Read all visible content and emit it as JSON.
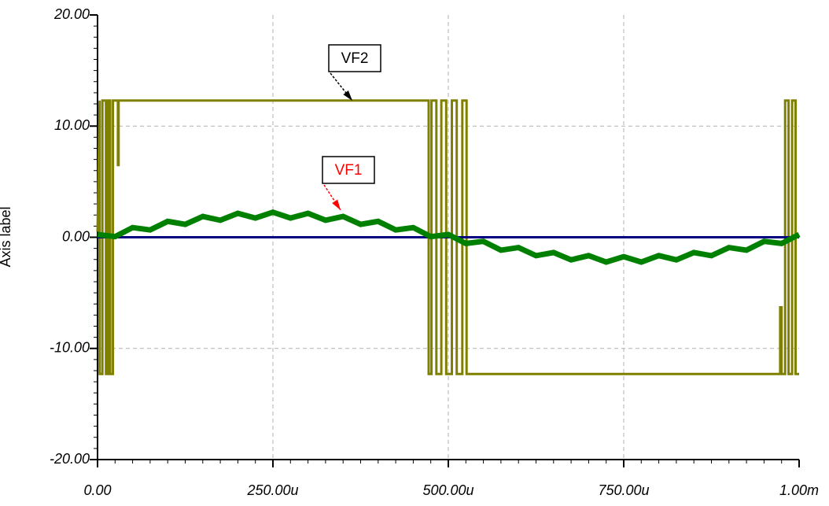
{
  "chart_data": {
    "type": "line",
    "y_label": "Axis label",
    "xlim": [
      0,
      0.001
    ],
    "ylim": [
      -20,
      20
    ],
    "xticks": [
      {
        "value": 0,
        "label": "0.00"
      },
      {
        "value": 0.00025,
        "label": "250.00u"
      },
      {
        "value": 0.0005,
        "label": "500.00u"
      },
      {
        "value": 0.00075,
        "label": "750.00u"
      },
      {
        "value": 0.001,
        "label": "1.00m"
      }
    ],
    "yticks": [
      {
        "value": -20,
        "label": "-20.00"
      },
      {
        "value": -10,
        "label": "-10.00"
      },
      {
        "value": 0,
        "label": "0.00"
      },
      {
        "value": 10,
        "label": "10.00"
      },
      {
        "value": 20,
        "label": "20.00"
      }
    ],
    "grid": true,
    "series": [
      {
        "name": "VF2",
        "color": "#808000",
        "x": [
          0,
          3e-06,
          3e-06,
          7e-06,
          7e-06,
          1.2e-05,
          1.2e-05,
          1.5e-05,
          1.5e-05,
          1.8e-05,
          1.8e-05,
          2.2e-05,
          2.2e-05,
          2.9e-05,
          2.9e-05,
          3e-05,
          3e-05,
          0.000472,
          0.000472,
          0.000476,
          0.000476,
          0.000483,
          0.000483,
          0.00049,
          0.00049,
          0.000497,
          0.000497,
          0.000505,
          0.000505,
          0.000512,
          0.000512,
          0.00052,
          0.00052,
          0.000526,
          0.000526,
          0.000973,
          0.000973,
          0.000975,
          0.000975,
          0.00098,
          0.00098,
          0.000985,
          0.000985,
          0.00099,
          0.00099,
          0.000995,
          0.000995,
          0.001
        ],
        "values": [
          0.5,
          12.3,
          -12.3,
          -12.3,
          12.3,
          12.3,
          -12.3,
          -12.3,
          12.3,
          12.3,
          -12.3,
          -12.3,
          12.3,
          12.3,
          6.5,
          6.5,
          12.3,
          12.3,
          -12.3,
          -12.3,
          12.3,
          12.3,
          -12.3,
          -12.3,
          12.3,
          12.3,
          -12.3,
          -12.3,
          12.3,
          12.3,
          -12.3,
          -12.3,
          12.3,
          12.3,
          -12.3,
          -12.3,
          -6.3,
          -6.3,
          -12.3,
          -12.3,
          12.3,
          12.3,
          -12.3,
          -12.3,
          12.3,
          12.3,
          -12.3,
          -12.3
        ]
      },
      {
        "color": "#000080",
        "x": [
          0,
          0.001
        ],
        "values": [
          0,
          0
        ]
      },
      {
        "name": "VF1",
        "color": "#008000",
        "x": [
          0,
          2.5e-05,
          5e-05,
          7.5e-05,
          0.0001,
          0.000125,
          0.00015,
          0.000175,
          0.0002,
          0.000225,
          0.00025,
          0.000275,
          0.0003,
          0.000325,
          0.00035,
          0.000375,
          0.0004,
          0.000425,
          0.00045,
          0.000475,
          0.0005,
          0.000525,
          0.00055,
          0.000575,
          0.0006,
          0.000625,
          0.00065,
          0.000675,
          0.0007,
          0.000725,
          0.00075,
          0.000775,
          0.0008,
          0.000825,
          0.00085,
          0.000875,
          0.0009,
          0.000925,
          0.00095,
          0.000975,
          0.001
        ],
        "values": [
          0.25,
          0.06,
          0.87,
          0.66,
          1.43,
          1.16,
          1.87,
          1.53,
          2.15,
          1.73,
          2.25,
          1.73,
          2.15,
          1.53,
          1.87,
          1.16,
          1.43,
          0.66,
          0.87,
          0.06,
          0.25,
          -0.56,
          -0.37,
          -1.16,
          -0.93,
          -1.66,
          -1.37,
          -2.03,
          -1.65,
          -2.23,
          -1.75,
          -2.23,
          -1.65,
          -2.03,
          -1.37,
          -1.66,
          -0.93,
          -1.16,
          -0.37,
          -0.56,
          0.25
        ]
      }
    ],
    "annotations": [
      {
        "text": "VF2",
        "color": "#000000"
      },
      {
        "text": "VF1",
        "color": "#ff0000"
      }
    ]
  }
}
